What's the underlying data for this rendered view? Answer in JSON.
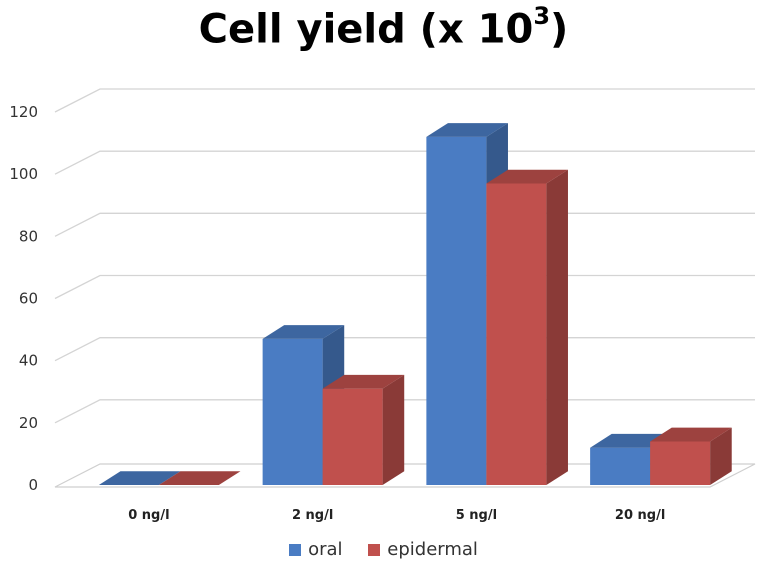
{
  "chart_data": {
    "type": "bar",
    "title": "Cell yield (x 10",
    "title_superscript": "3",
    "title_suffix": ")",
    "categories": [
      "0 ng/l",
      "2 ng/l",
      "5 ng/l",
      "20 ng/l"
    ],
    "series": [
      {
        "name": "oral",
        "values": [
          0,
          47,
          112,
          12
        ],
        "color": "#4a7cc3"
      },
      {
        "name": "epidermal",
        "values": [
          0,
          31,
          97,
          14
        ],
        "color": "#c0504d"
      }
    ],
    "yticks": [
      0,
      20,
      40,
      60,
      80,
      100,
      120
    ],
    "ylim": [
      0,
      120
    ],
    "grid": true,
    "legend_position": "bottom",
    "style": "3d-column"
  }
}
